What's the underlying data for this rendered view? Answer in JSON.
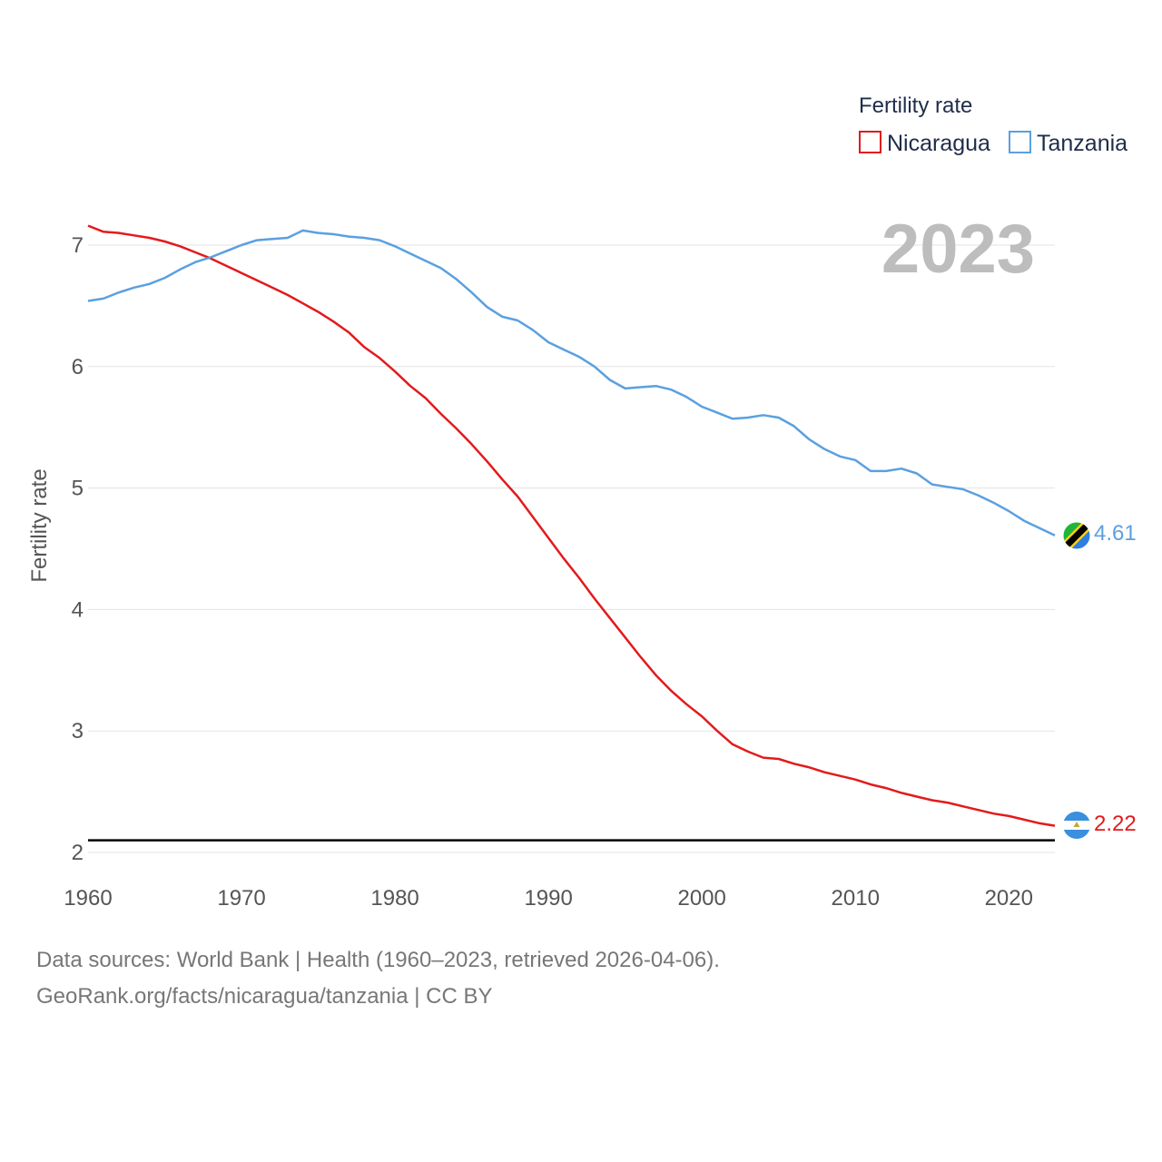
{
  "chart_data": {
    "type": "line",
    "legend_title": "Fertility rate",
    "ylabel": "Fertility rate",
    "year_label": "2023",
    "xlim": [
      1960,
      2023
    ],
    "ylim": [
      2,
      7.3
    ],
    "yticks": [
      "2",
      "3",
      "4",
      "5",
      "6",
      "7"
    ],
    "xticks": [
      "1960",
      "1970",
      "1980",
      "1990",
      "2000",
      "2010",
      "2020"
    ],
    "reference_line": 2.1,
    "series": [
      {
        "name": "Nicaragua",
        "color": "#e31a1c",
        "end_label": "2.22",
        "x": [
          1960,
          1961,
          1962,
          1963,
          1964,
          1965,
          1966,
          1967,
          1968,
          1969,
          1970,
          1971,
          1972,
          1973,
          1974,
          1975,
          1976,
          1977,
          1978,
          1979,
          1980,
          1981,
          1982,
          1983,
          1984,
          1985,
          1986,
          1987,
          1988,
          1989,
          1990,
          1991,
          1992,
          1993,
          1994,
          1995,
          1996,
          1997,
          1998,
          1999,
          2000,
          2001,
          2002,
          2003,
          2004,
          2005,
          2006,
          2007,
          2008,
          2009,
          2010,
          2011,
          2012,
          2013,
          2014,
          2015,
          2016,
          2017,
          2018,
          2019,
          2020,
          2021,
          2022,
          2023
        ],
        "values": [
          7.16,
          7.11,
          7.1,
          7.08,
          7.06,
          7.03,
          6.99,
          6.94,
          6.89,
          6.83,
          6.77,
          6.71,
          6.65,
          6.59,
          6.52,
          6.45,
          6.37,
          6.28,
          6.16,
          6.07,
          5.96,
          5.84,
          5.74,
          5.61,
          5.49,
          5.36,
          5.22,
          5.07,
          4.93,
          4.76,
          4.59,
          4.42,
          4.26,
          4.09,
          3.93,
          3.77,
          3.61,
          3.46,
          3.33,
          3.22,
          3.12,
          3.0,
          2.89,
          2.83,
          2.78,
          2.77,
          2.73,
          2.7,
          2.66,
          2.63,
          2.6,
          2.56,
          2.53,
          2.49,
          2.46,
          2.43,
          2.41,
          2.38,
          2.35,
          2.32,
          2.3,
          2.27,
          2.24,
          2.22
        ]
      },
      {
        "name": "Tanzania",
        "color": "#5aa0e0",
        "end_label": "4.61",
        "x": [
          1960,
          1961,
          1962,
          1963,
          1964,
          1965,
          1966,
          1967,
          1968,
          1969,
          1970,
          1971,
          1972,
          1973,
          1974,
          1975,
          1976,
          1977,
          1978,
          1979,
          1980,
          1981,
          1982,
          1983,
          1984,
          1985,
          1986,
          1987,
          1988,
          1989,
          1990,
          1991,
          1992,
          1993,
          1994,
          1995,
          1996,
          1997,
          1998,
          1999,
          2000,
          2001,
          2002,
          2003,
          2004,
          2005,
          2006,
          2007,
          2008,
          2009,
          2010,
          2011,
          2012,
          2013,
          2014,
          2015,
          2016,
          2017,
          2018,
          2019,
          2020,
          2021,
          2022,
          2023
        ],
        "values": [
          6.54,
          6.56,
          6.61,
          6.65,
          6.68,
          6.73,
          6.8,
          6.86,
          6.9,
          6.95,
          7.0,
          7.04,
          7.05,
          7.06,
          7.12,
          7.1,
          7.09,
          7.07,
          7.06,
          7.04,
          6.99,
          6.93,
          6.87,
          6.81,
          6.72,
          6.61,
          6.49,
          6.41,
          6.38,
          6.3,
          6.2,
          6.14,
          6.08,
          6.0,
          5.89,
          5.82,
          5.83,
          5.84,
          5.81,
          5.75,
          5.67,
          5.62,
          5.57,
          5.58,
          5.6,
          5.58,
          5.51,
          5.4,
          5.32,
          5.26,
          5.23,
          5.14,
          5.14,
          5.16,
          5.12,
          5.03,
          5.01,
          4.99,
          4.94,
          4.88,
          4.81,
          4.73,
          4.67,
          4.61
        ]
      }
    ]
  },
  "sources": {
    "line1": "Data sources: World Bank | Health (1960–2023, retrieved 2026-04-06).",
    "line2": "GeoRank.org/facts/nicaragua/tanzania | CC BY"
  }
}
